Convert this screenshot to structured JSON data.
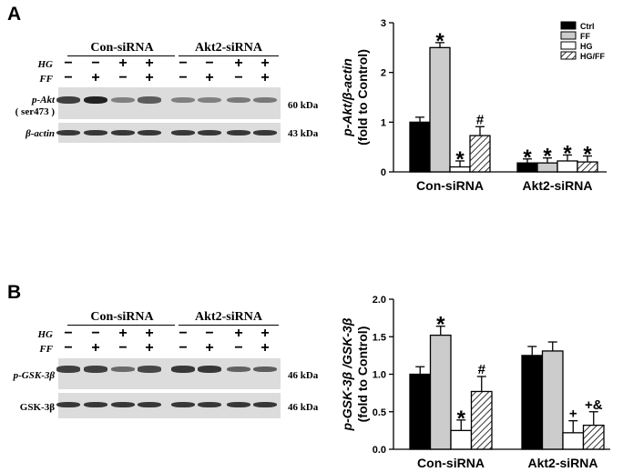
{
  "panels": [
    {
      "letter": "A",
      "groups": [
        "Con-siRNA",
        "Akt2-siRNA"
      ],
      "conditions": [
        {
          "label": "HG",
          "signs": [
            "−",
            "−",
            "+",
            "+",
            "−",
            "−",
            "+",
            "+"
          ]
        },
        {
          "label": "FF",
          "signs": [
            "−",
            "+",
            "−",
            "+",
            "−",
            "+",
            "−",
            "+"
          ]
        }
      ],
      "blots": [
        {
          "label_line1": "p-Akt",
          "label_line2": "( ser473 )",
          "kda": "60 kDa",
          "intensities": [
            0.75,
            0.95,
            0.3,
            0.55,
            0.3,
            0.3,
            0.35,
            0.35
          ]
        },
        {
          "label_line1": "β-actin",
          "label_line2": "",
          "kda": "43 kDa",
          "intensities": [
            0.8,
            0.8,
            0.8,
            0.8,
            0.8,
            0.8,
            0.8,
            0.8
          ]
        }
      ]
    },
    {
      "letter": "B",
      "groups": [
        "Con-siRNA",
        "Akt2-siRNA"
      ],
      "conditions": [
        {
          "label": "HG",
          "signs": [
            "−",
            "−",
            "+",
            "+",
            "−",
            "−",
            "+",
            "+"
          ]
        },
        {
          "label": "FF",
          "signs": [
            "−",
            "+",
            "−",
            "+",
            "−",
            "+",
            "−",
            "+"
          ]
        }
      ],
      "blots": [
        {
          "label_line1": "p-GSK-3β",
          "label_line2": "",
          "kda": "46 kDa",
          "intensities": [
            0.75,
            0.75,
            0.45,
            0.7,
            0.8,
            0.8,
            0.5,
            0.55
          ]
        },
        {
          "label_line1": "GSK-3β",
          "label_line2": "",
          "kda": "46 kDa",
          "intensities": [
            0.8,
            0.8,
            0.8,
            0.8,
            0.8,
            0.8,
            0.8,
            0.8
          ]
        }
      ]
    }
  ],
  "chart_data": [
    {
      "type": "bar",
      "ylabel_line1": "p-Akt/β-actin",
      "ylabel_line2": "(fold to Control)",
      "ylim": [
        0,
        3
      ],
      "yticks": [
        "0",
        "1",
        "2",
        "3"
      ],
      "categories": [
        "Con-siRNA",
        "Akt2-siRNA"
      ],
      "legend": [
        "Ctrl",
        "FF",
        "HG",
        "HG/FF"
      ],
      "series": [
        {
          "name": "Ctrl",
          "values": [
            1.0,
            0.18
          ],
          "errors": [
            0.1,
            0.08
          ],
          "marks": [
            "",
            "*"
          ]
        },
        {
          "name": "FF",
          "values": [
            2.5,
            0.18
          ],
          "errors": [
            0.1,
            0.1
          ],
          "marks": [
            "*",
            "*"
          ]
        },
        {
          "name": "HG",
          "values": [
            0.1,
            0.22
          ],
          "errors": [
            0.12,
            0.12
          ],
          "marks": [
            "*",
            "*"
          ]
        },
        {
          "name": "HG/FF",
          "values": [
            0.73,
            0.2
          ],
          "errors": [
            0.18,
            0.12
          ],
          "marks": [
            "#",
            "*"
          ]
        }
      ]
    },
    {
      "type": "bar",
      "ylabel_line1": "p-GSK-3β /GSK-3β",
      "ylabel_line2": "(fold to Control)",
      "ylim": [
        0,
        2.0
      ],
      "yticks": [
        "0.0",
        "0.5",
        "1.0",
        "1.5",
        "2.0"
      ],
      "categories": [
        "Con-siRNA",
        "Akt2-siRNA"
      ],
      "legend": [
        "Ctrl",
        "FF",
        "HG",
        "HG/FF"
      ],
      "series": [
        {
          "name": "Ctrl",
          "values": [
            1.0,
            1.25
          ],
          "errors": [
            0.1,
            0.12
          ],
          "marks": [
            "",
            ""
          ]
        },
        {
          "name": "FF",
          "values": [
            1.52,
            1.31
          ],
          "errors": [
            0.12,
            0.12
          ],
          "marks": [
            "*",
            ""
          ]
        },
        {
          "name": "HG",
          "values": [
            0.25,
            0.22
          ],
          "errors": [
            0.14,
            0.16
          ],
          "marks": [
            "*",
            "+"
          ]
        },
        {
          "name": "HG/FF",
          "values": [
            0.77,
            0.32
          ],
          "errors": [
            0.2,
            0.18
          ],
          "marks": [
            "#",
            "+&"
          ]
        }
      ]
    }
  ]
}
